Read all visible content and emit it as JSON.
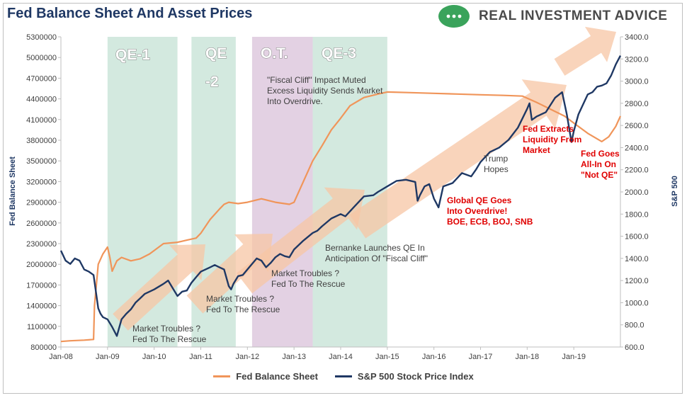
{
  "header": {
    "title": "Fed Balance Sheet And Asset Prices",
    "brand": "REAL INVESTMENT ADVICE"
  },
  "colors": {
    "fed_line": "#f0955a",
    "spx_line": "#1f3864",
    "band_green": "#d3e9df",
    "band_purple": "#e3d1e3",
    "arrow": "#f7c6a4",
    "axis_title": "#1f3864",
    "red_note": "#e00000"
  },
  "chart_data": {
    "type": "line",
    "title": "Fed Balance Sheet And Asset Prices",
    "ylabel_left": "Fed Balance Sheet",
    "ylabel_right": "S&P 500",
    "ylim_left": [
      800000,
      5300000
    ],
    "ylim_right": [
      600,
      3400
    ],
    "xlim": [
      2008.0,
      2020.0
    ],
    "x_tick_labels": [
      "Jan-08",
      "Jan-09",
      "Jan-10",
      "Jan-11",
      "Jan-12",
      "Jan-13",
      "Jan-14",
      "Jan-15",
      "Jan-16",
      "Jan-17",
      "Jan-18",
      "Jan-19"
    ],
    "y_left_ticks": [
      "800000",
      "1100000",
      "1400000",
      "1700000",
      "2000000",
      "2300000",
      "2600000",
      "2900000",
      "3200000",
      "3500000",
      "3800000",
      "4100000",
      "4400000",
      "4700000",
      "5000000",
      "5300000"
    ],
    "y_right_ticks": [
      "600.0",
      "800.0",
      "1000.0",
      "1200.0",
      "1400.0",
      "1600.0",
      "1800.0",
      "2000.0",
      "2200.0",
      "2400.0",
      "2600.0",
      "2800.0",
      "3000.0",
      "3200.0",
      "3400.0"
    ],
    "grid": false,
    "legend_position": "bottom",
    "bands": [
      {
        "label": "QE-1",
        "start": 2009.0,
        "end": 2010.5,
        "color": "green"
      },
      {
        "label": "QE-2",
        "start": 2010.8,
        "end": 2011.75,
        "color": "green"
      },
      {
        "label": "O.T.",
        "start": 2012.1,
        "end": 2013.4,
        "color": "purple"
      },
      {
        "label": "QE-3",
        "start": 2013.4,
        "end": 2015.0,
        "color": "green"
      }
    ],
    "annotations": [
      {
        "lines": [
          "Market Troubles ?",
          "Fed To The Rescue"
        ],
        "style": "normal"
      },
      {
        "lines": [
          "Market Troubles ?",
          "Fed To The Rescue"
        ],
        "style": "normal"
      },
      {
        "lines": [
          "Market Troubles ?",
          "Fed To The Rescue"
        ],
        "style": "normal"
      },
      {
        "lines": [
          "\"Fiscal Cliff\" Impact Muted",
          "Excess Liquidity Sends Market",
          "Into Overdrive."
        ],
        "style": "normal"
      },
      {
        "lines": [
          "Bernanke Launches QE In",
          "Anticipation Of \"Fiscal Cliff\""
        ],
        "style": "normal"
      },
      {
        "lines": [
          "Trump",
          "Hopes"
        ],
        "style": "normal"
      },
      {
        "lines": [
          "Global QE Goes",
          "Into Overdrive!",
          "BOE, ECB, BOJ, SNB"
        ],
        "style": "red"
      },
      {
        "lines": [
          "Fed Extracts",
          "Liquidity From",
          "Market"
        ],
        "style": "red"
      },
      {
        "lines": [
          "Fed Goes",
          "All-In On",
          "\"Not QE\""
        ],
        "style": "red"
      }
    ],
    "series": [
      {
        "name": "Fed Balance Sheet",
        "axis": "left",
        "x": [
          2008.0,
          2008.2,
          2008.5,
          2008.7,
          2008.72,
          2008.8,
          2008.9,
          2009.0,
          2009.05,
          2009.1,
          2009.2,
          2009.3,
          2009.5,
          2009.7,
          2009.9,
          2010.0,
          2010.2,
          2010.5,
          2010.7,
          2010.9,
          2011.0,
          2011.2,
          2011.4,
          2011.5,
          2011.6,
          2011.8,
          2012.0,
          2012.3,
          2012.6,
          2012.9,
          2013.0,
          2013.2,
          2013.4,
          2013.6,
          2013.8,
          2014.0,
          2014.2,
          2014.5,
          2014.8,
          2015.0,
          2015.5,
          2016.0,
          2016.5,
          2017.0,
          2017.5,
          2017.9,
          2018.2,
          2018.5,
          2018.8,
          2019.0,
          2019.3,
          2019.6,
          2019.75,
          2019.9,
          2020.0
        ],
        "y": [
          880000,
          890000,
          900000,
          910000,
          1400000,
          2000000,
          2150000,
          2250000,
          2100000,
          1900000,
          2050000,
          2100000,
          2050000,
          2080000,
          2150000,
          2200000,
          2300000,
          2320000,
          2350000,
          2380000,
          2450000,
          2650000,
          2800000,
          2870000,
          2900000,
          2880000,
          2900000,
          2950000,
          2900000,
          2870000,
          2900000,
          3200000,
          3500000,
          3720000,
          3950000,
          4120000,
          4300000,
          4420000,
          4470000,
          4500000,
          4490000,
          4480000,
          4470000,
          4460000,
          4450000,
          4440000,
          4350000,
          4250000,
          4150000,
          4050000,
          3900000,
          3780000,
          3850000,
          4000000,
          4150000
        ]
      },
      {
        "name": "S&P 500 Stock Price Index",
        "axis": "right",
        "x": [
          2008.0,
          2008.1,
          2008.2,
          2008.3,
          2008.4,
          2008.5,
          2008.6,
          2008.7,
          2008.75,
          2008.8,
          2008.85,
          2008.9,
          2009.0,
          2009.1,
          2009.2,
          2009.3,
          2009.4,
          2009.5,
          2009.6,
          2009.7,
          2009.8,
          2009.9,
          2010.0,
          2010.2,
          2010.3,
          2010.4,
          2010.5,
          2010.6,
          2010.7,
          2010.8,
          2010.9,
          2011.0,
          2011.2,
          2011.3,
          2011.4,
          2011.5,
          2011.6,
          2011.65,
          2011.7,
          2011.8,
          2011.9,
          2012.0,
          2012.2,
          2012.3,
          2012.4,
          2012.5,
          2012.6,
          2012.7,
          2012.8,
          2012.9,
          2013.0,
          2013.2,
          2013.4,
          2013.5,
          2013.6,
          2013.8,
          2014.0,
          2014.1,
          2014.3,
          2014.5,
          2014.7,
          2014.8,
          2015.0,
          2015.2,
          2015.4,
          2015.6,
          2015.65,
          2015.7,
          2015.8,
          2015.9,
          2016.0,
          2016.1,
          2016.2,
          2016.4,
          2016.6,
          2016.8,
          2016.9,
          2017.0,
          2017.2,
          2017.4,
          2017.6,
          2017.8,
          2018.0,
          2018.05,
          2018.1,
          2018.2,
          2018.4,
          2018.6,
          2018.75,
          2018.85,
          2018.95,
          2019.0,
          2019.1,
          2019.3,
          2019.4,
          2019.5,
          2019.6,
          2019.7,
          2019.8,
          2019.9,
          2020.0
        ],
        "y": [
          1470,
          1380,
          1350,
          1400,
          1380,
          1300,
          1280,
          1250,
          1100,
          950,
          900,
          870,
          850,
          780,
          700,
          850,
          900,
          940,
          1000,
          1040,
          1080,
          1100,
          1120,
          1170,
          1200,
          1130,
          1060,
          1100,
          1110,
          1180,
          1230,
          1280,
          1320,
          1340,
          1320,
          1300,
          1150,
          1120,
          1170,
          1240,
          1250,
          1300,
          1400,
          1380,
          1320,
          1360,
          1410,
          1440,
          1420,
          1410,
          1480,
          1560,
          1630,
          1650,
          1690,
          1760,
          1800,
          1780,
          1870,
          1960,
          1970,
          2000,
          2050,
          2100,
          2110,
          2090,
          1920,
          1970,
          2050,
          2070,
          1940,
          1860,
          2050,
          2080,
          2170,
          2140,
          2200,
          2270,
          2360,
          2400,
          2470,
          2580,
          2750,
          2800,
          2650,
          2680,
          2720,
          2850,
          2900,
          2700,
          2450,
          2550,
          2700,
          2880,
          2900,
          2950,
          2960,
          2980,
          3050,
          3150,
          3230
        ]
      }
    ]
  },
  "legend": {
    "items": [
      {
        "label": "Fed Balance Sheet"
      },
      {
        "label": "S&P 500 Stock Price Index"
      }
    ]
  }
}
